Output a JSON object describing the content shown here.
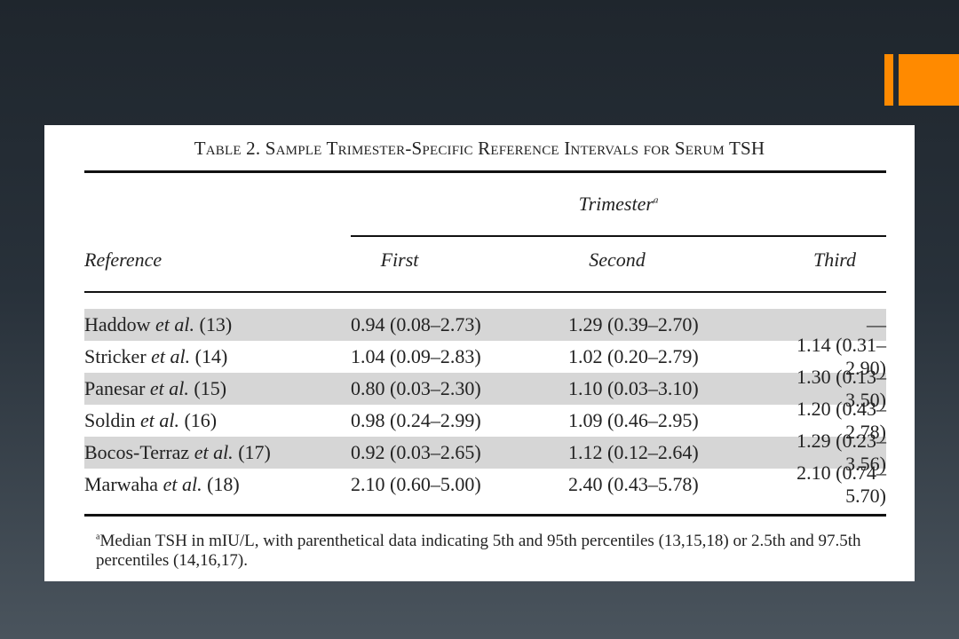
{
  "colors": {
    "accent": "#ff8a00",
    "panel": "#ffffff",
    "shade": "#d6d6d6"
  },
  "table": {
    "title": "Table 2. Sample Trimester-Specific Reference Intervals for Serum TSH",
    "trimester_label": "Trimester",
    "trimester_sup": "a",
    "headers": {
      "reference": "Reference",
      "first": "First",
      "second": "Second",
      "third": "Third"
    },
    "rows": [
      {
        "ref_name": "Haddow",
        "ref_etal": "et al.",
        "ref_num": "(13)",
        "first": "0.94 (0.08–2.73)",
        "second": "1.29 (0.39–2.70)",
        "third": "—"
      },
      {
        "ref_name": "Stricker",
        "ref_etal": "et al.",
        "ref_num": "(14)",
        "first": "1.04 (0.09–2.83)",
        "second": "1.02 (0.20–2.79)",
        "third": "1.14 (0.31–2.90)"
      },
      {
        "ref_name": "Panesar",
        "ref_etal": "et al.",
        "ref_num": "(15)",
        "first": "0.80 (0.03–2.30)",
        "second": "1.10 (0.03–3.10)",
        "third": "1.30 (0.13–3.50)"
      },
      {
        "ref_name": "Soldin",
        "ref_etal": "et al.",
        "ref_num": "(16)",
        "first": "0.98 (0.24–2.99)",
        "second": "1.09 (0.46–2.95)",
        "third": "1.20 (0.43–2.78)"
      },
      {
        "ref_name": "Bocos-Terraz",
        "ref_etal": "et al.",
        "ref_num": "(17)",
        "first": "0.92 (0.03–2.65)",
        "second": "1.12 (0.12–2.64)",
        "third": "1.29 (0.23–3.56)"
      },
      {
        "ref_name": "Marwaha",
        "ref_etal": "et al.",
        "ref_num": "(18)",
        "first": "2.10 (0.60–5.00)",
        "second": "2.40 (0.43–5.78)",
        "third": "2.10 (0.74–5.70)"
      }
    ],
    "footnote_sup": "a",
    "footnote": "Median TSH in mIU/L, with parenthetical data indicating 5th and 95th percentiles (13,15,18) or 2.5th and 97.5th percentiles (14,16,17)."
  }
}
